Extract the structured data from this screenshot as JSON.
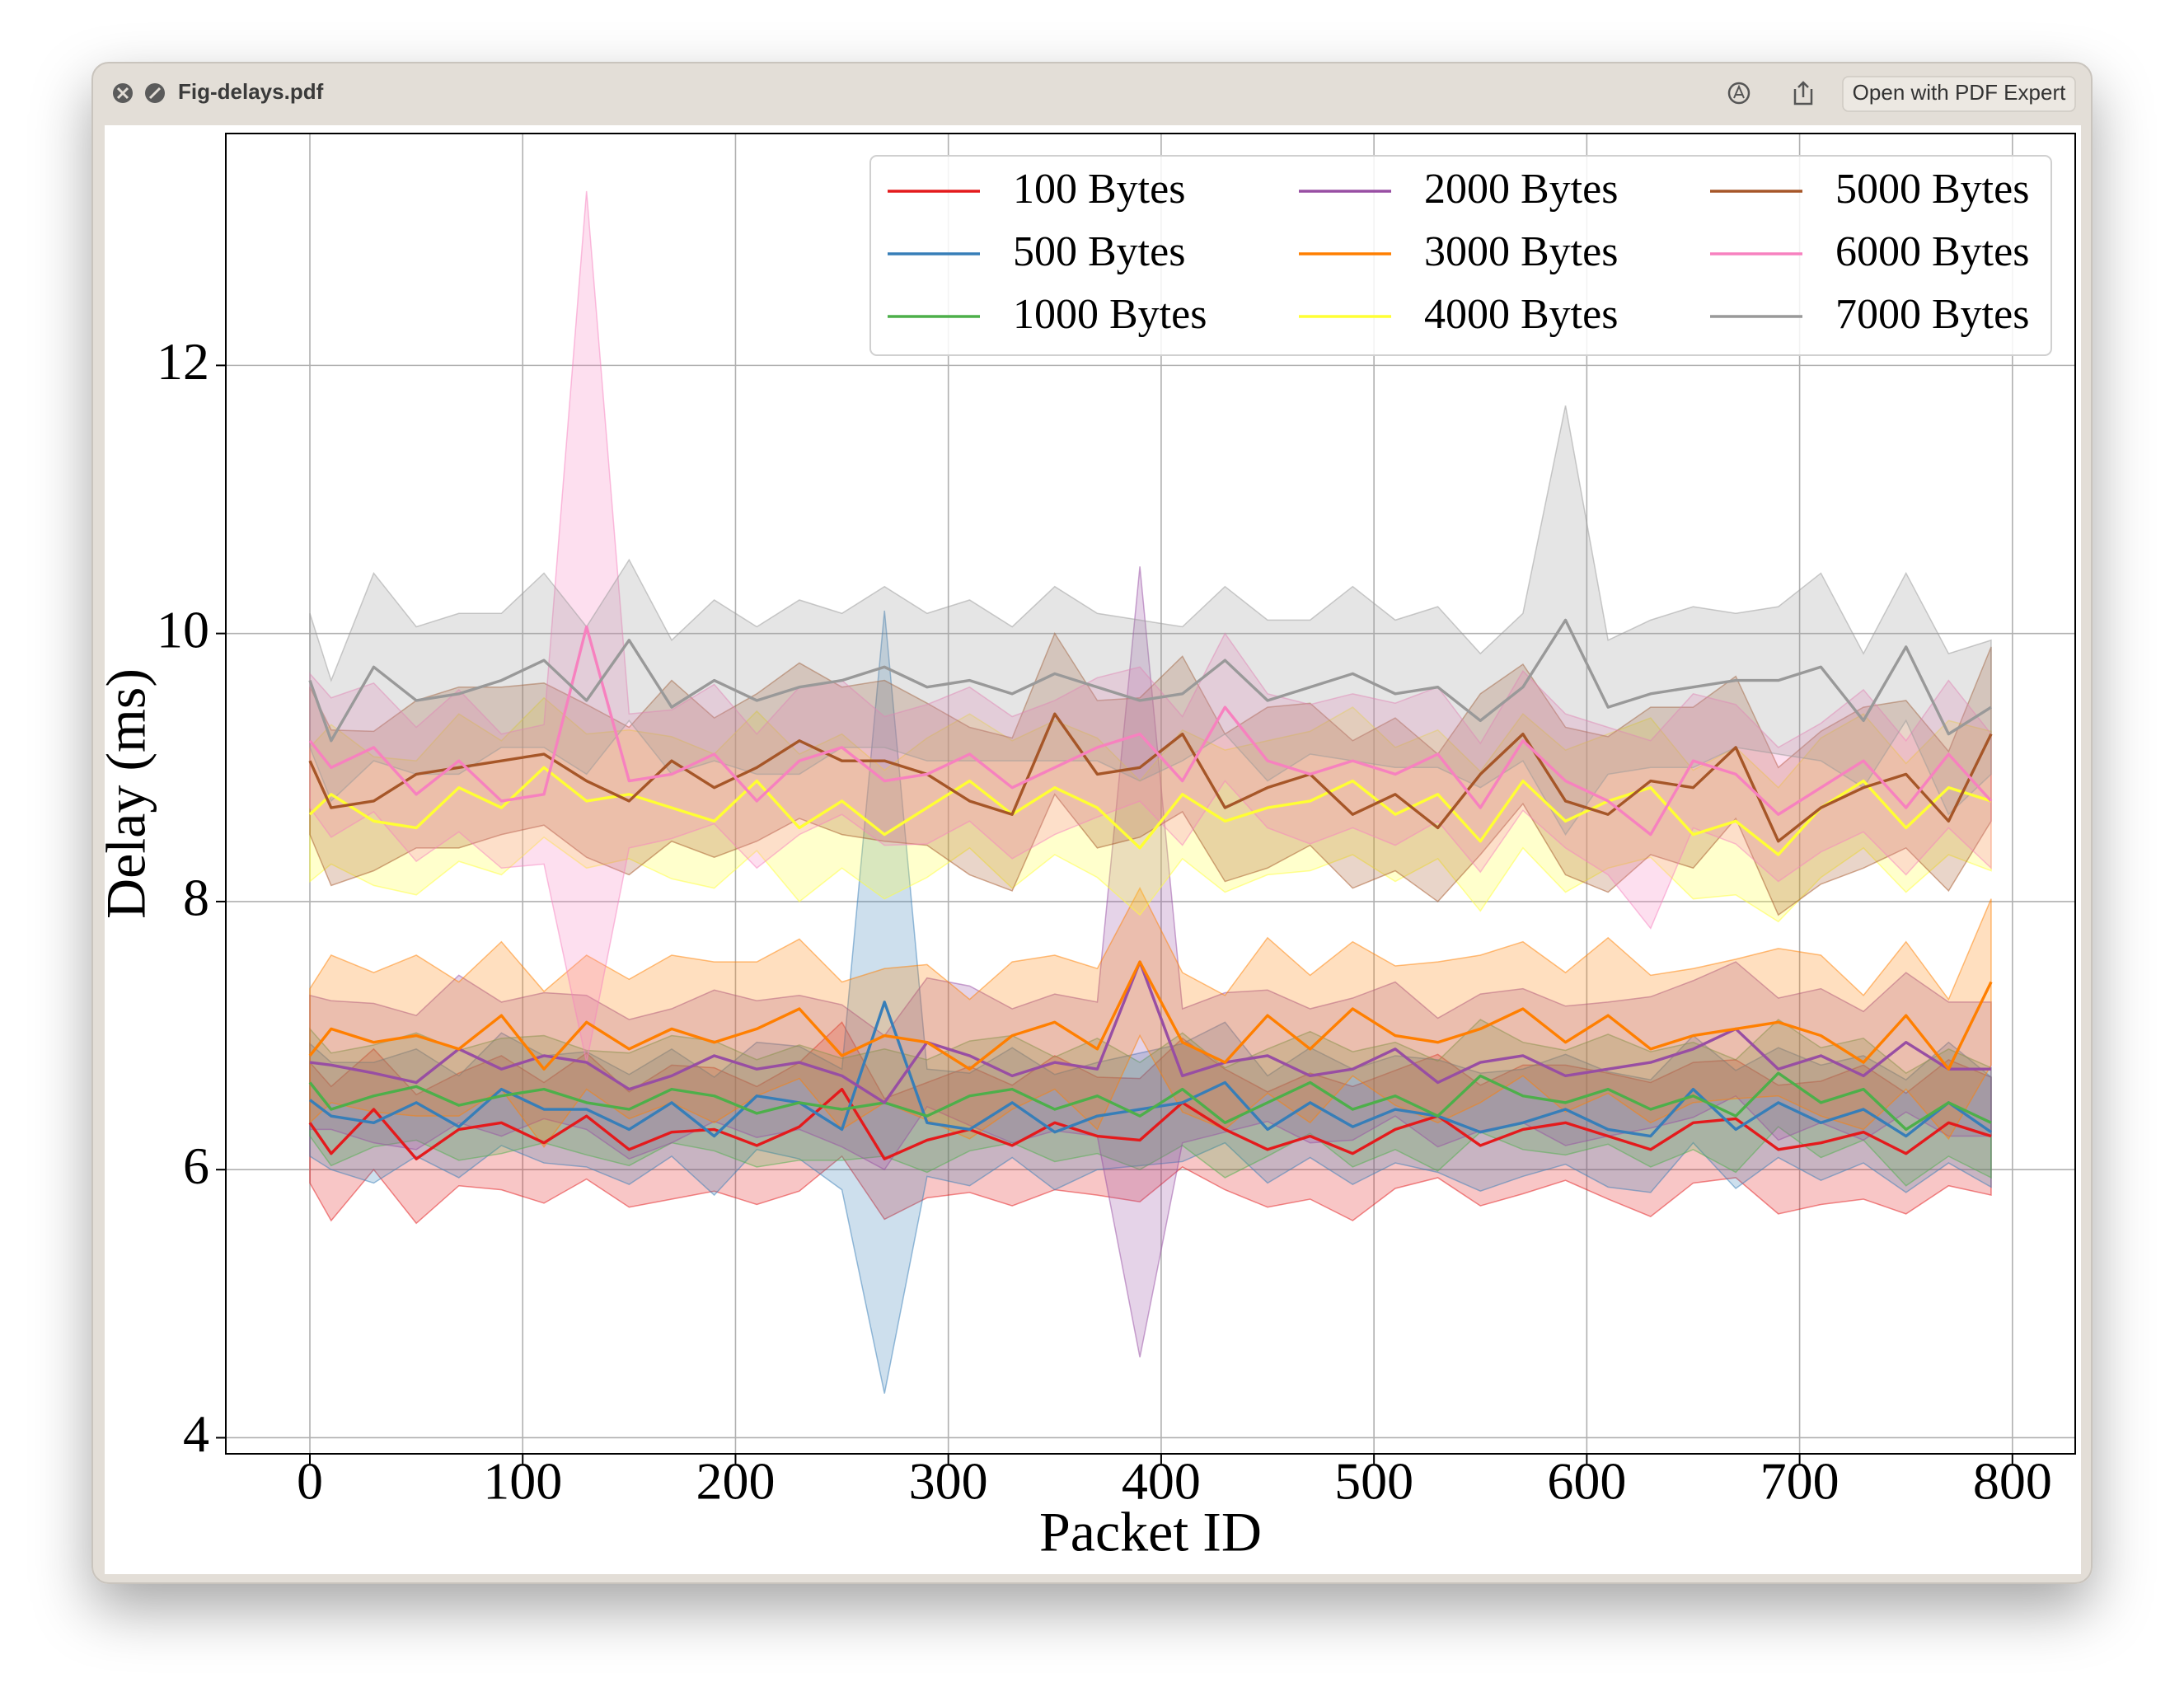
{
  "window": {
    "title": "Fig-delays.pdf",
    "button": "Open with PDF Expert"
  },
  "chart_data": {
    "type": "line",
    "xlabel": "Packet ID",
    "ylabel": "Delay (ms)",
    "xlim": [
      -39.5,
      829.5
    ],
    "xticks": [
      0,
      100,
      200,
      300,
      400,
      500,
      600,
      700,
      800
    ],
    "ylim": [
      3.88,
      13.73
    ],
    "yticks": [
      4,
      6,
      8,
      10,
      12
    ],
    "grid": true,
    "legend": "upper right",
    "band_opacity": 0.25,
    "x": [
      0,
      10,
      30,
      50,
      70,
      90,
      110,
      130,
      150,
      170,
      190,
      210,
      230,
      250,
      270,
      290,
      310,
      330,
      350,
      370,
      390,
      410,
      430,
      450,
      470,
      490,
      510,
      530,
      550,
      570,
      590,
      610,
      630,
      650,
      670,
      690,
      710,
      730,
      750,
      770,
      790
    ],
    "series": [
      {
        "name": "100 Bytes",
        "color": "#e41a1c",
        "values": [
          6.35,
          6.12,
          6.45,
          6.08,
          6.3,
          6.35,
          6.2,
          6.4,
          6.15,
          6.28,
          6.3,
          6.18,
          6.32,
          6.6,
          6.08,
          6.22,
          6.3,
          6.18,
          6.35,
          6.25,
          6.22,
          6.5,
          6.3,
          6.15,
          6.25,
          6.12,
          6.3,
          6.4,
          6.18,
          6.3,
          6.35,
          6.25,
          6.15,
          6.35,
          6.38,
          6.15,
          6.2,
          6.28,
          6.12,
          6.35,
          6.25
        ],
        "error": [
          0.45,
          0.5,
          0.45,
          0.48,
          0.42,
          0.5,
          0.45,
          0.47,
          0.43,
          0.5,
          0.46,
          0.44,
          0.48,
          0.5,
          0.45,
          0.43,
          0.47,
          0.45,
          0.5,
          0.44,
          0.46,
          0.48,
          0.45,
          0.43,
          0.47,
          0.5,
          0.44,
          0.46,
          0.45,
          0.48,
          0.43,
          0.47,
          0.5,
          0.45,
          0.44,
          0.48,
          0.46,
          0.5,
          0.45,
          0.47,
          0.44
        ]
      },
      {
        "name": "500 Bytes",
        "color": "#377eb8",
        "values": [
          6.52,
          6.4,
          6.35,
          6.5,
          6.32,
          6.6,
          6.45,
          6.45,
          6.3,
          6.5,
          6.25,
          6.55,
          6.5,
          6.3,
          7.25,
          6.35,
          6.3,
          6.5,
          6.28,
          6.4,
          6.45,
          6.5,
          6.65,
          6.3,
          6.5,
          6.32,
          6.45,
          6.4,
          6.28,
          6.35,
          6.45,
          6.3,
          6.25,
          6.6,
          6.3,
          6.5,
          6.35,
          6.45,
          6.25,
          6.5,
          6.28
        ],
        "error": [
          0.42,
          0.4,
          0.45,
          0.4,
          0.38,
          0.42,
          0.4,
          0.43,
          0.41,
          0.4,
          0.44,
          0.4,
          0.42,
          0.45,
          2.92,
          0.4,
          0.42,
          0.41,
          0.43,
          0.4,
          0.42,
          0.44,
          0.45,
          0.4,
          0.41,
          0.43,
          0.4,
          0.42,
          0.44,
          0.4,
          0.41,
          0.43,
          0.42,
          0.4,
          0.44,
          0.41,
          0.43,
          0.4,
          0.42,
          0.45,
          0.41
        ]
      },
      {
        "name": "1000 Bytes",
        "color": "#4daf4a",
        "values": [
          6.65,
          6.45,
          6.55,
          6.62,
          6.48,
          6.55,
          6.6,
          6.5,
          6.45,
          6.6,
          6.55,
          6.42,
          6.5,
          6.45,
          6.5,
          6.4,
          6.55,
          6.6,
          6.45,
          6.55,
          6.4,
          6.6,
          6.35,
          6.5,
          6.65,
          6.45,
          6.55,
          6.4,
          6.7,
          6.55,
          6.5,
          6.6,
          6.45,
          6.55,
          6.4,
          6.72,
          6.5,
          6.6,
          6.3,
          6.5,
          6.35
        ],
        "error": [
          0.4,
          0.42,
          0.38,
          0.4,
          0.41,
          0.43,
          0.4,
          0.39,
          0.42,
          0.4,
          0.41,
          0.4,
          0.43,
          0.38,
          0.4,
          0.42,
          0.41,
          0.4,
          0.39,
          0.43,
          0.4,
          0.42,
          0.41,
          0.4,
          0.38,
          0.43,
          0.4,
          0.41,
          0.42,
          0.4,
          0.39,
          0.41,
          0.43,
          0.4,
          0.42,
          0.4,
          0.41,
          0.38,
          0.42,
          0.4,
          0.41
        ]
      },
      {
        "name": "2000 Bytes",
        "color": "#984ea3",
        "values": [
          6.8,
          6.78,
          6.72,
          6.65,
          6.9,
          6.75,
          6.85,
          6.8,
          6.6,
          6.7,
          6.85,
          6.75,
          6.8,
          6.7,
          6.5,
          6.95,
          6.85,
          6.7,
          6.8,
          6.75,
          7.55,
          6.7,
          6.8,
          6.85,
          6.7,
          6.75,
          6.9,
          6.65,
          6.8,
          6.85,
          6.7,
          6.75,
          6.8,
          6.9,
          7.05,
          6.75,
          6.85,
          6.7,
          6.95,
          6.75,
          6.75
        ],
        "error": [
          0.5,
          0.48,
          0.52,
          0.5,
          0.55,
          0.5,
          0.47,
          0.5,
          0.52,
          0.5,
          0.49,
          0.51,
          0.5,
          0.53,
          0.5,
          0.48,
          0.52,
          0.5,
          0.51,
          0.5,
          2.95,
          0.5,
          0.52,
          0.49,
          0.5,
          0.53,
          0.5,
          0.48,
          0.51,
          0.5,
          0.52,
          0.5,
          0.49,
          0.51,
          0.5,
          0.53,
          0.5,
          0.48,
          0.52,
          0.5,
          0.5
        ]
      },
      {
        "name": "3000 Bytes",
        "color": "#ff7f00",
        "values": [
          6.85,
          7.05,
          6.95,
          7.0,
          6.9,
          7.15,
          6.75,
          7.1,
          6.9,
          7.05,
          6.95,
          7.05,
          7.2,
          6.85,
          7.0,
          6.95,
          6.75,
          7.0,
          7.1,
          6.9,
          7.55,
          6.95,
          6.8,
          7.15,
          6.9,
          7.2,
          7.0,
          6.95,
          7.05,
          7.2,
          6.95,
          7.15,
          6.9,
          7.0,
          7.05,
          7.1,
          7.0,
          6.8,
          7.15,
          6.75,
          7.4
        ],
        "error": [
          0.5,
          0.55,
          0.52,
          0.6,
          0.5,
          0.55,
          0.58,
          0.5,
          0.52,
          0.55,
          0.6,
          0.5,
          0.52,
          0.55,
          0.5,
          0.58,
          0.52,
          0.55,
          0.5,
          0.6,
          0.55,
          0.52,
          0.5,
          0.58,
          0.55,
          0.5,
          0.52,
          0.6,
          0.55,
          0.5,
          0.52,
          0.58,
          0.55,
          0.5,
          0.52,
          0.55,
          0.6,
          0.5,
          0.55,
          0.52,
          0.62
        ]
      },
      {
        "name": "4000 Bytes",
        "color": "#ffff33",
        "values": [
          8.65,
          8.8,
          8.6,
          8.55,
          8.85,
          8.7,
          9.0,
          8.75,
          8.8,
          8.7,
          8.6,
          8.9,
          8.55,
          8.75,
          8.5,
          8.7,
          8.9,
          8.65,
          8.85,
          8.7,
          8.4,
          8.8,
          8.6,
          8.7,
          8.75,
          8.9,
          8.65,
          8.8,
          8.45,
          8.9,
          8.6,
          8.75,
          8.85,
          8.5,
          8.6,
          8.35,
          8.7,
          8.9,
          8.55,
          8.85,
          8.75
        ],
        "error": [
          0.5,
          0.52,
          0.48,
          0.5,
          0.55,
          0.5,
          0.52,
          0.5,
          0.48,
          0.53,
          0.5,
          0.52,
          0.55,
          0.5,
          0.48,
          0.52,
          0.5,
          0.55,
          0.5,
          0.52,
          0.5,
          0.48,
          0.53,
          0.5,
          0.52,
          0.55,
          0.5,
          0.48,
          0.52,
          0.5,
          0.53,
          0.5,
          0.52,
          0.48,
          0.55,
          0.5,
          0.52,
          0.5,
          0.48,
          0.5,
          0.52
        ]
      },
      {
        "name": "5000 Bytes",
        "color": "#a65628",
        "values": [
          9.05,
          8.7,
          8.75,
          8.95,
          9.0,
          9.05,
          9.1,
          8.9,
          8.75,
          9.05,
          8.85,
          9.0,
          9.2,
          9.05,
          9.05,
          8.95,
          8.75,
          8.65,
          9.4,
          8.95,
          9.0,
          9.25,
          8.7,
          8.85,
          8.95,
          8.65,
          8.8,
          8.55,
          8.95,
          9.25,
          8.75,
          8.65,
          8.9,
          8.85,
          9.15,
          8.45,
          8.7,
          8.85,
          8.95,
          8.6,
          9.25
        ],
        "error": [
          0.55,
          0.58,
          0.52,
          0.55,
          0.6,
          0.55,
          0.53,
          0.57,
          0.55,
          0.6,
          0.52,
          0.55,
          0.58,
          0.55,
          0.6,
          0.53,
          0.55,
          0.57,
          0.6,
          0.55,
          0.52,
          0.58,
          0.55,
          0.6,
          0.53,
          0.55,
          0.57,
          0.55,
          0.6,
          0.52,
          0.55,
          0.58,
          0.55,
          0.6,
          0.53,
          0.55,
          0.57,
          0.6,
          0.55,
          0.52,
          0.65
        ]
      },
      {
        "name": "6000 Bytes",
        "color": "#f781bf",
        "values": [
          9.2,
          9.0,
          9.15,
          8.8,
          9.05,
          8.75,
          8.8,
          10.05,
          8.9,
          8.95,
          9.1,
          8.75,
          9.05,
          9.15,
          8.9,
          8.95,
          9.1,
          8.85,
          9.0,
          9.15,
          9.25,
          8.9,
          9.45,
          9.05,
          8.95,
          9.05,
          8.95,
          9.1,
          8.7,
          9.2,
          8.9,
          8.75,
          8.5,
          9.05,
          8.95,
          8.65,
          8.85,
          9.05,
          8.7,
          9.1,
          8.75
        ],
        "error": [
          0.5,
          0.52,
          0.48,
          0.5,
          0.53,
          0.5,
          0.52,
          3.25,
          0.5,
          0.48,
          0.52,
          0.5,
          0.55,
          0.5,
          0.48,
          0.52,
          0.5,
          0.53,
          0.5,
          0.52,
          0.5,
          0.48,
          0.55,
          0.5,
          0.52,
          0.5,
          0.53,
          0.5,
          0.48,
          0.52,
          0.5,
          0.55,
          0.7,
          0.5,
          0.52,
          0.5,
          0.48,
          0.53,
          0.5,
          0.55,
          0.5
        ]
      },
      {
        "name": "7000 Bytes",
        "color": "#999999",
        "values": [
          9.65,
          9.2,
          9.75,
          9.5,
          9.55,
          9.65,
          9.8,
          9.5,
          9.95,
          9.45,
          9.65,
          9.5,
          9.6,
          9.65,
          9.75,
          9.6,
          9.65,
          9.55,
          9.7,
          9.6,
          9.5,
          9.55,
          9.8,
          9.5,
          9.6,
          9.7,
          9.55,
          9.6,
          9.35,
          9.6,
          10.1,
          9.45,
          9.55,
          9.6,
          9.65,
          9.65,
          9.75,
          9.35,
          9.9,
          9.25,
          9.45
        ],
        "error": [
          0.5,
          0.45,
          0.7,
          0.55,
          0.6,
          0.5,
          0.65,
          0.55,
          0.6,
          0.5,
          0.6,
          0.55,
          0.65,
          0.5,
          0.6,
          0.55,
          0.6,
          0.5,
          0.65,
          0.55,
          0.6,
          0.5,
          0.55,
          0.6,
          0.5,
          0.65,
          0.55,
          0.6,
          0.5,
          0.55,
          1.6,
          0.5,
          0.55,
          0.6,
          0.5,
          0.55,
          0.7,
          0.5,
          0.55,
          0.6,
          0.5
        ]
      }
    ]
  }
}
